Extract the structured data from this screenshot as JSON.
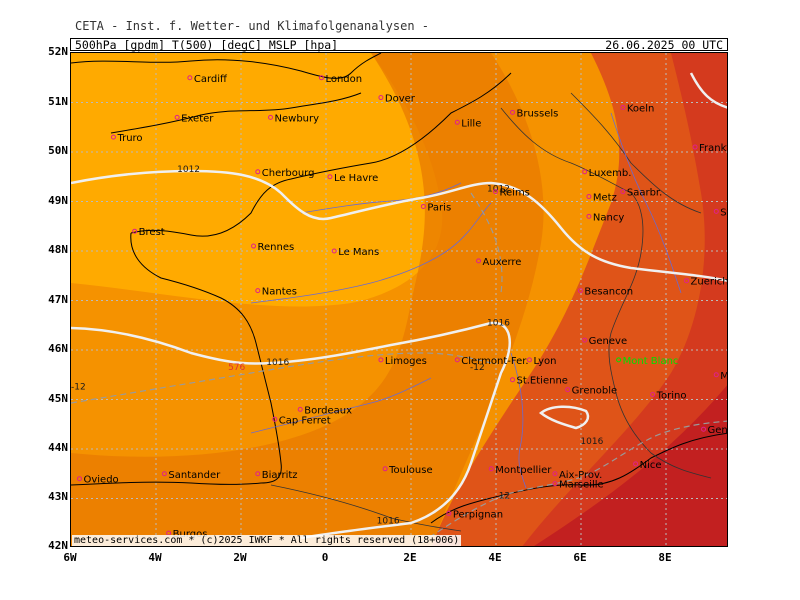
{
  "header": {
    "title": "CETA - Inst. f. Wetter- und Klimafolgenanalysen -",
    "params": "500hPa [gpdm] T(500) [degC] MSLP [hpa]",
    "date": "26.06.2025 00 UTC"
  },
  "axes": {
    "lat_labels": [
      "52N",
      "51N",
      "50N",
      "49N",
      "48N",
      "47N",
      "46N",
      "45N",
      "44N",
      "43N",
      "42N"
    ],
    "lon_labels": [
      "6W",
      "4W",
      "2W",
      "0",
      "2E",
      "4E",
      "6E",
      "8E"
    ]
  },
  "cities": [
    {
      "name": "Cardiff",
      "lon": -3.2,
      "lat": 51.5
    },
    {
      "name": "London",
      "lon": -0.1,
      "lat": 51.5
    },
    {
      "name": "Dover",
      "lon": 1.3,
      "lat": 51.1
    },
    {
      "name": "Exeter",
      "lon": -3.5,
      "lat": 50.7
    },
    {
      "name": "Newbury",
      "lon": -1.3,
      "lat": 50.7
    },
    {
      "name": "Truro",
      "lon": -5.0,
      "lat": 50.3
    },
    {
      "name": "Lille",
      "lon": 3.1,
      "lat": 50.6
    },
    {
      "name": "Brussels",
      "lon": 4.4,
      "lat": 50.8
    },
    {
      "name": "Koeln",
      "lon": 7.0,
      "lat": 50.9
    },
    {
      "name": "Frankfurt",
      "lon": 8.7,
      "lat": 50.1
    },
    {
      "name": "Le Havre",
      "lon": 0.1,
      "lat": 49.5
    },
    {
      "name": "Cherbourg",
      "lon": -1.6,
      "lat": 49.6
    },
    {
      "name": "Reims",
      "lon": 4.0,
      "lat": 49.2
    },
    {
      "name": "Luxemb.",
      "lon": 6.1,
      "lat": 49.6
    },
    {
      "name": "Saarbr.",
      "lon": 7.0,
      "lat": 49.2
    },
    {
      "name": "Metz",
      "lon": 6.2,
      "lat": 49.1
    },
    {
      "name": "Paris",
      "lon": 2.3,
      "lat": 48.9
    },
    {
      "name": "Nancy",
      "lon": 6.2,
      "lat": 48.7
    },
    {
      "name": "Stuttgart",
      "lon": 9.2,
      "lat": 48.8
    },
    {
      "name": "Brest",
      "lon": -4.5,
      "lat": 48.4
    },
    {
      "name": "Rennes",
      "lon": -1.7,
      "lat": 48.1
    },
    {
      "name": "Le Mans",
      "lon": 0.2,
      "lat": 48.0
    },
    {
      "name": "Auxerre",
      "lon": 3.6,
      "lat": 47.8
    },
    {
      "name": "Zuerich",
      "lon": 8.5,
      "lat": 47.4
    },
    {
      "name": "Nantes",
      "lon": -1.6,
      "lat": 47.2
    },
    {
      "name": "Besancon",
      "lon": 6.0,
      "lat": 47.2
    },
    {
      "name": "Clermont-Fer.",
      "lon": 3.1,
      "lat": 45.8
    },
    {
      "name": "Geneve",
      "lon": 6.1,
      "lat": 46.2
    },
    {
      "name": "Limoges",
      "lon": 1.3,
      "lat": 45.8
    },
    {
      "name": "Lyon",
      "lon": 4.8,
      "lat": 45.8
    },
    {
      "name": "Mont Blanc",
      "lon": 6.9,
      "lat": 45.8
    },
    {
      "name": "St.Etienne",
      "lon": 4.4,
      "lat": 45.4
    },
    {
      "name": "Milano",
      "lon": 9.2,
      "lat": 45.5
    },
    {
      "name": "Grenoble",
      "lon": 5.7,
      "lat": 45.2
    },
    {
      "name": "Bordeaux",
      "lon": -0.6,
      "lat": 44.8
    },
    {
      "name": "Torino",
      "lon": 7.7,
      "lat": 45.1
    },
    {
      "name": "Cap Ferret",
      "lon": -1.2,
      "lat": 44.6
    },
    {
      "name": "Genova",
      "lon": 8.9,
      "lat": 44.4
    },
    {
      "name": "Nice",
      "lon": 7.3,
      "lat": 43.7
    },
    {
      "name": "Montpellier",
      "lon": 3.9,
      "lat": 43.6
    },
    {
      "name": "Toulouse",
      "lon": 1.4,
      "lat": 43.6
    },
    {
      "name": "Aix-Prov.",
      "lon": 5.4,
      "lat": 43.5
    },
    {
      "name": "Biarritz",
      "lon": -1.6,
      "lat": 43.5
    },
    {
      "name": "Marseille",
      "lon": 5.4,
      "lat": 43.3
    },
    {
      "name": "Oviedo",
      "lon": -5.8,
      "lat": 43.4
    },
    {
      "name": "Santander",
      "lon": -3.8,
      "lat": 43.5
    },
    {
      "name": "Perpignan",
      "lon": 2.9,
      "lat": 42.7
    },
    {
      "name": "Burgos",
      "lon": -3.7,
      "lat": 42.3
    }
  ],
  "contour_labels": [
    {
      "text": "1012",
      "lon": -3.5,
      "lat": 49.6
    },
    {
      "text": "1012",
      "lon": 3.8,
      "lat": 49.2
    },
    {
      "text": "1016",
      "lon": 3.8,
      "lat": 46.5
    },
    {
      "text": "1016",
      "lon": -1.4,
      "lat": 45.7
    },
    {
      "text": "1016",
      "lon": 6.0,
      "lat": 44.1
    },
    {
      "text": "1016",
      "lon": 1.2,
      "lat": 42.5
    },
    {
      "text": "576",
      "lon": -2.3,
      "lat": 45.6
    },
    {
      "text": "-12",
      "lon": -6.0,
      "lat": 45.2
    },
    {
      "text": "-12",
      "lon": 3.4,
      "lat": 45.6
    },
    {
      "text": "-12",
      "lon": 4.0,
      "lat": 43.0
    }
  ],
  "footer": {
    "text": "meteo-services.com * (c)2025 IWKF * All rights reserved (18+006)"
  },
  "colors": {
    "fill_light": "#FFAA00",
    "fill_orange": "#F59200",
    "fill_dark_orange": "#E87A00",
    "fill_red_orange": "#DF5418",
    "fill_red": "#D43A1E",
    "fill_dark_red": "#C22020",
    "isobar": "#F0F0F0",
    "coast": "#000000",
    "river": "#6A6AD0",
    "city_marker": "#E0208A",
    "mountain_label": "#00E000"
  }
}
